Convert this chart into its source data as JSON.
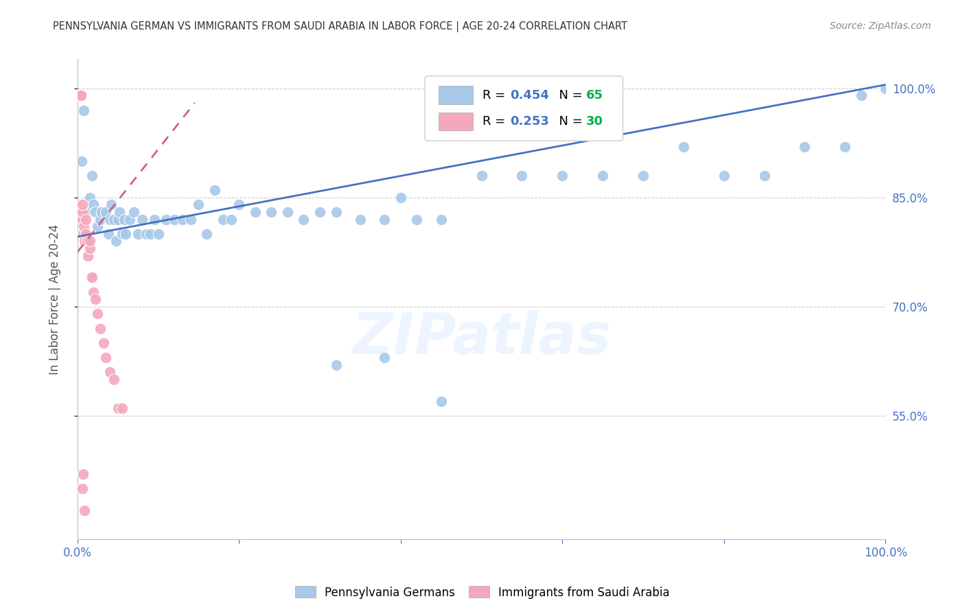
{
  "title": "PENNSYLVANIA GERMAN VS IMMIGRANTS FROM SAUDI ARABIA IN LABOR FORCE | AGE 20-24 CORRELATION CHART",
  "source": "Source: ZipAtlas.com",
  "ylabel": "In Labor Force | Age 20-24",
  "watermark": "ZIPatlas",
  "r_blue": 0.454,
  "n_blue": 65,
  "r_pink": 0.253,
  "n_pink": 30,
  "blue_color": "#a8c8e8",
  "pink_color": "#f4a8bb",
  "line_blue": "#4472c4",
  "line_pink": "#d06080",
  "legend_r_color": "#4472c4",
  "legend_n_color": "#00b050",
  "xmin": 0.0,
  "xmax": 1.0,
  "ymin": 0.38,
  "ymax": 1.04,
  "x_tick_labels": [
    "0.0%",
    "",
    "",
    "",
    "",
    "100.0%"
  ],
  "x_ticks": [
    0.0,
    0.2,
    0.4,
    0.6,
    0.8,
    1.0
  ],
  "y_tick_labels": [
    "55.0%",
    "70.0%",
    "85.0%",
    "100.0%"
  ],
  "y_ticks": [
    0.55,
    0.7,
    0.85,
    1.0
  ],
  "blue_line_x0": 0.0,
  "blue_line_y0": 0.796,
  "blue_line_x1": 1.0,
  "blue_line_y1": 1.005,
  "pink_line_x0": 0.0,
  "pink_line_y0": 0.775,
  "pink_line_x1": 0.145,
  "pink_line_y1": 0.98,
  "blue_points_x": [
    0.005,
    0.008,
    0.012,
    0.015,
    0.018,
    0.02,
    0.022,
    0.025,
    0.028,
    0.03,
    0.035,
    0.038,
    0.04,
    0.042,
    0.045,
    0.048,
    0.05,
    0.052,
    0.055,
    0.058,
    0.06,
    0.065,
    0.07,
    0.075,
    0.08,
    0.085,
    0.09,
    0.095,
    0.1,
    0.11,
    0.12,
    0.13,
    0.14,
    0.15,
    0.16,
    0.17,
    0.18,
    0.19,
    0.2,
    0.22,
    0.24,
    0.26,
    0.28,
    0.3,
    0.32,
    0.35,
    0.38,
    0.4,
    0.42,
    0.45,
    0.5,
    0.55,
    0.6,
    0.65,
    0.7,
    0.75,
    0.8,
    0.85,
    0.9,
    0.95,
    0.32,
    0.38,
    0.45,
    1.0,
    0.97
  ],
  "blue_points_y": [
    0.9,
    0.97,
    0.83,
    0.85,
    0.88,
    0.84,
    0.83,
    0.81,
    0.82,
    0.83,
    0.83,
    0.8,
    0.82,
    0.84,
    0.82,
    0.79,
    0.82,
    0.83,
    0.8,
    0.82,
    0.8,
    0.82,
    0.83,
    0.8,
    0.82,
    0.8,
    0.8,
    0.82,
    0.8,
    0.82,
    0.82,
    0.82,
    0.82,
    0.84,
    0.8,
    0.86,
    0.82,
    0.82,
    0.84,
    0.83,
    0.83,
    0.83,
    0.82,
    0.83,
    0.83,
    0.82,
    0.82,
    0.85,
    0.82,
    0.82,
    0.88,
    0.88,
    0.88,
    0.88,
    0.88,
    0.92,
    0.88,
    0.88,
    0.92,
    0.92,
    0.62,
    0.63,
    0.57,
    1.0,
    0.99
  ],
  "pink_points_x": [
    0.004,
    0.004,
    0.004,
    0.006,
    0.006,
    0.006,
    0.007,
    0.008,
    0.009,
    0.01,
    0.01,
    0.012,
    0.013,
    0.015,
    0.015,
    0.017,
    0.018,
    0.02,
    0.022,
    0.025,
    0.028,
    0.032,
    0.035,
    0.04,
    0.045,
    0.05,
    0.055,
    0.006,
    0.007,
    0.009
  ],
  "pink_points_y": [
    0.99,
    0.99,
    0.99,
    0.82,
    0.83,
    0.84,
    0.8,
    0.81,
    0.79,
    0.8,
    0.82,
    0.79,
    0.77,
    0.78,
    0.79,
    0.74,
    0.74,
    0.72,
    0.71,
    0.69,
    0.67,
    0.65,
    0.63,
    0.61,
    0.6,
    0.56,
    0.56,
    0.45,
    0.47,
    0.42
  ],
  "background_color": "#ffffff",
  "grid_color": "#cccccc",
  "axis_color": "#bbbbbb",
  "right_tick_color": "#4472c4"
}
